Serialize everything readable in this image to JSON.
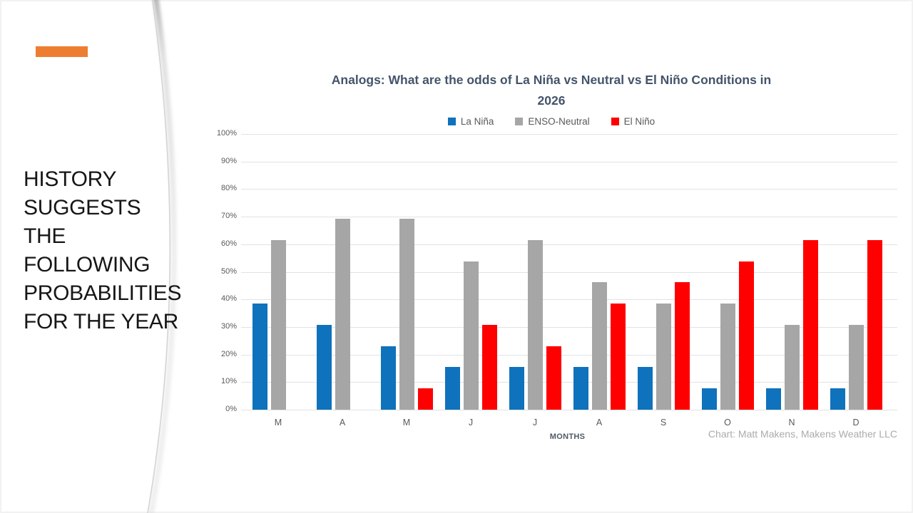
{
  "slide": {
    "accent_color": "#ED7D31",
    "headline_lines": [
      "HISTORY",
      "SUGGESTS",
      "THE",
      "FOLLOWING",
      "PROBABILITIES",
      "FOR THE YEAR"
    ]
  },
  "chart_data": {
    "type": "bar",
    "title": "Analogs: What are the odds of La Niña vs Neutral vs El Niño Conditions in 2026",
    "title_lines": [
      "Analogs: What are the odds of La Niña vs Neutral vs El Niño Conditions in",
      "2026"
    ],
    "title_color": "#44546A",
    "xlabel": "MONTHS",
    "ylabel": "",
    "ylim": [
      0,
      100
    ],
    "ytick_step": 10,
    "ytick_suffix": "%",
    "grid": true,
    "legend_position": "top",
    "categories": [
      "M",
      "A",
      "M",
      "J",
      "J",
      "A",
      "S",
      "O",
      "N",
      "D"
    ],
    "series": [
      {
        "name": "La Niña",
        "color": "#0F72BC",
        "values": [
          38.5,
          30.8,
          23.1,
          15.4,
          15.4,
          15.4,
          15.4,
          7.7,
          7.7,
          7.7
        ]
      },
      {
        "name": "ENSO-Neutral",
        "color": "#A6A6A6",
        "values": [
          61.5,
          69.2,
          69.2,
          53.8,
          61.5,
          46.2,
          38.5,
          38.5,
          30.8,
          30.8
        ]
      },
      {
        "name": "El Niño",
        "color": "#FF0000",
        "values": [
          0,
          0,
          7.7,
          30.8,
          23.1,
          38.5,
          46.2,
          53.8,
          61.5,
          61.5
        ]
      }
    ],
    "attribution": "Chart: Matt Makens, Makens Weather LLC"
  }
}
